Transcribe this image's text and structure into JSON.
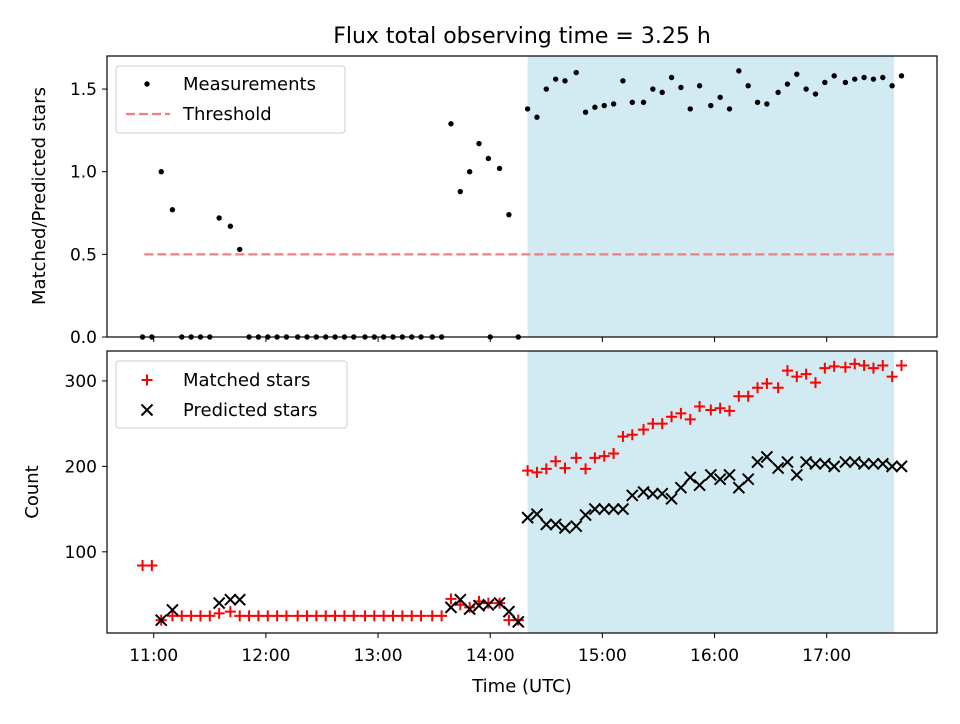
{
  "chart_data": [
    {
      "type": "scatter",
      "title": "Flux total observing time = 3.25 h",
      "xlabel": "",
      "ylabel": "Matched/Predicted stars",
      "ylim": [
        0,
        1.7
      ],
      "yticks": [
        "0.0",
        "0.5",
        "1.0",
        "1.5"
      ],
      "legend": {
        "placement": "top-left",
        "entries": [
          "Measurements",
          "Threshold"
        ]
      },
      "shaded_span": {
        "x0": "14:20",
        "x1": "17:36",
        "color": "#add8e6"
      },
      "threshold": {
        "y": 0.5,
        "x0": "10:55",
        "x1": "17:36",
        "color": "#f08080"
      },
      "series": [
        {
          "name": "Measurements",
          "color": "#000000",
          "marker": "dot",
          "points": [
            [
              "10:54",
              0.0
            ],
            [
              "10:59",
              0.0
            ],
            [
              "11:04",
              1.0
            ],
            [
              "11:10",
              0.77
            ],
            [
              "11:15",
              0.0
            ],
            [
              "11:20",
              0.0
            ],
            [
              "11:25",
              0.0
            ],
            [
              "11:30",
              0.0
            ],
            [
              "11:35",
              0.72
            ],
            [
              "11:41",
              0.67
            ],
            [
              "11:46",
              0.53
            ],
            [
              "11:51",
              0.0
            ],
            [
              "11:56",
              0.0
            ],
            [
              "12:01",
              0.0
            ],
            [
              "12:06",
              0.0
            ],
            [
              "12:11",
              0.0
            ],
            [
              "12:17",
              0.0
            ],
            [
              "12:22",
              0.0
            ],
            [
              "12:27",
              0.0
            ],
            [
              "12:32",
              0.0
            ],
            [
              "12:37",
              0.0
            ],
            [
              "12:42",
              0.0
            ],
            [
              "12:47",
              0.0
            ],
            [
              "12:53",
              0.0
            ],
            [
              "12:58",
              0.0
            ],
            [
              "13:03",
              0.0
            ],
            [
              "13:08",
              0.0
            ],
            [
              "13:13",
              0.0
            ],
            [
              "13:18",
              0.0
            ],
            [
              "13:23",
              0.0
            ],
            [
              "13:29",
              0.0
            ],
            [
              "13:34",
              0.0
            ],
            [
              "13:39",
              1.29
            ],
            [
              "13:44",
              0.88
            ],
            [
              "13:49",
              1.0
            ],
            [
              "13:54",
              1.17
            ],
            [
              "13:59",
              1.08
            ],
            [
              "14:00",
              0.0
            ],
            [
              "14:05",
              1.02
            ],
            [
              "14:10",
              0.74
            ],
            [
              "14:15",
              0.0
            ],
            [
              "14:20",
              1.38
            ],
            [
              "14:25",
              1.33
            ],
            [
              "14:30",
              1.5
            ],
            [
              "14:35",
              1.56
            ],
            [
              "14:40",
              1.55
            ],
            [
              "14:46",
              1.6
            ],
            [
              "14:51",
              1.36
            ],
            [
              "14:56",
              1.39
            ],
            [
              "15:01",
              1.4
            ],
            [
              "15:06",
              1.41
            ],
            [
              "15:11",
              1.55
            ],
            [
              "15:16",
              1.42
            ],
            [
              "15:22",
              1.42
            ],
            [
              "15:27",
              1.5
            ],
            [
              "15:32",
              1.48
            ],
            [
              "15:37",
              1.57
            ],
            [
              "15:42",
              1.51
            ],
            [
              "15:47",
              1.38
            ],
            [
              "15:52",
              1.52
            ],
            [
              "15:58",
              1.4
            ],
            [
              "16:03",
              1.45
            ],
            [
              "16:08",
              1.38
            ],
            [
              "16:13",
              1.61
            ],
            [
              "16:18",
              1.52
            ],
            [
              "16:23",
              1.42
            ],
            [
              "16:28",
              1.41
            ],
            [
              "16:34",
              1.48
            ],
            [
              "16:39",
              1.53
            ],
            [
              "16:44",
              1.59
            ],
            [
              "16:49",
              1.5
            ],
            [
              "16:54",
              1.47
            ],
            [
              "16:59",
              1.54
            ],
            [
              "17:04",
              1.58
            ],
            [
              "17:10",
              1.54
            ],
            [
              "17:15",
              1.56
            ],
            [
              "17:20",
              1.57
            ],
            [
              "17:25",
              1.56
            ],
            [
              "17:30",
              1.57
            ],
            [
              "17:35",
              1.52
            ],
            [
              "17:40",
              1.58
            ]
          ]
        }
      ]
    },
    {
      "type": "scatter",
      "title": "",
      "xlabel": "Time (UTC)",
      "ylabel": "Count",
      "ylim": [
        5,
        335
      ],
      "yticks": [
        "100",
        "200",
        "300"
      ],
      "xticks": [
        "11:00",
        "12:00",
        "13:00",
        "14:00",
        "15:00",
        "16:00",
        "17:00"
      ],
      "xlim": [
        "10:35",
        "17:59"
      ],
      "legend": {
        "placement": "top-left",
        "entries": [
          "Matched stars",
          "Predicted stars"
        ]
      },
      "shaded_span": {
        "x0": "14:20",
        "x1": "17:36",
        "color": "#add8e6"
      },
      "series": [
        {
          "name": "Matched stars",
          "color": "#ff0000",
          "marker": "plus",
          "points": [
            [
              "10:54",
              84
            ],
            [
              "10:59",
              84
            ],
            [
              "11:04",
              20
            ],
            [
              "11:10",
              25
            ],
            [
              "11:15",
              25
            ],
            [
              "11:20",
              25
            ],
            [
              "11:25",
              25
            ],
            [
              "11:30",
              25
            ],
            [
              "11:35",
              28
            ],
            [
              "11:41",
              30
            ],
            [
              "11:46",
              25
            ],
            [
              "11:51",
              25
            ],
            [
              "11:56",
              25
            ],
            [
              "12:01",
              25
            ],
            [
              "12:06",
              25
            ],
            [
              "12:11",
              25
            ],
            [
              "12:17",
              25
            ],
            [
              "12:22",
              25
            ],
            [
              "12:27",
              25
            ],
            [
              "12:32",
              25
            ],
            [
              "12:37",
              25
            ],
            [
              "12:42",
              25
            ],
            [
              "12:47",
              25
            ],
            [
              "12:53",
              25
            ],
            [
              "12:58",
              25
            ],
            [
              "13:03",
              25
            ],
            [
              "13:08",
              25
            ],
            [
              "13:13",
              25
            ],
            [
              "13:18",
              25
            ],
            [
              "13:23",
              25
            ],
            [
              "13:29",
              25
            ],
            [
              "13:34",
              25
            ],
            [
              "13:39",
              45
            ],
            [
              "13:44",
              38
            ],
            [
              "13:49",
              35
            ],
            [
              "13:54",
              42
            ],
            [
              "13:59",
              40
            ],
            [
              "14:05",
              40
            ],
            [
              "14:10",
              20
            ],
            [
              "14:15",
              20
            ],
            [
              "14:20",
              195
            ],
            [
              "14:25",
              193
            ],
            [
              "14:30",
              197
            ],
            [
              "14:35",
              206
            ],
            [
              "14:40",
              198
            ],
            [
              "14:46",
              210
            ],
            [
              "14:51",
              197
            ],
            [
              "14:56",
              210
            ],
            [
              "15:01",
              212
            ],
            [
              "15:06",
              215
            ],
            [
              "15:11",
              235
            ],
            [
              "15:16",
              237
            ],
            [
              "15:22",
              243
            ],
            [
              "15:27",
              250
            ],
            [
              "15:32",
              250
            ],
            [
              "15:37",
              258
            ],
            [
              "15:42",
              262
            ],
            [
              "15:47",
              255
            ],
            [
              "15:52",
              270
            ],
            [
              "15:58",
              266
            ],
            [
              "16:03",
              268
            ],
            [
              "16:08",
              265
            ],
            [
              "16:13",
              282
            ],
            [
              "16:18",
              282
            ],
            [
              "16:23",
              292
            ],
            [
              "16:28",
              297
            ],
            [
              "16:34",
              292
            ],
            [
              "16:39",
              312
            ],
            [
              "16:44",
              305
            ],
            [
              "16:49",
              308
            ],
            [
              "16:54",
              298
            ],
            [
              "16:59",
              315
            ],
            [
              "17:04",
              317
            ],
            [
              "17:10",
              316
            ],
            [
              "17:15",
              320
            ],
            [
              "17:20",
              318
            ],
            [
              "17:25",
              315
            ],
            [
              "17:30",
              318
            ],
            [
              "17:35",
              305
            ],
            [
              "17:40",
              318
            ]
          ]
        },
        {
          "name": "Predicted stars",
          "color": "#000000",
          "marker": "x",
          "points": [
            [
              "11:04",
              20
            ],
            [
              "11:10",
              32
            ],
            [
              "11:35",
              40
            ],
            [
              "11:41",
              44
            ],
            [
              "11:46",
              44
            ],
            [
              "13:39",
              35
            ],
            [
              "13:44",
              44
            ],
            [
              "13:49",
              33
            ],
            [
              "13:54",
              37
            ],
            [
              "13:59",
              38
            ],
            [
              "14:05",
              40
            ],
            [
              "14:10",
              30
            ],
            [
              "14:15",
              18
            ],
            [
              "14:20",
              140
            ],
            [
              "14:25",
              144
            ],
            [
              "14:30",
              132
            ],
            [
              "14:35",
              132
            ],
            [
              "14:40",
              128
            ],
            [
              "14:46",
              130
            ],
            [
              "14:51",
              143
            ],
            [
              "14:56",
              150
            ],
            [
              "15:01",
              150
            ],
            [
              "15:06",
              150
            ],
            [
              "15:11",
              150
            ],
            [
              "15:16",
              166
            ],
            [
              "15:22",
              170
            ],
            [
              "15:27",
              168
            ],
            [
              "15:32",
              168
            ],
            [
              "15:37",
              162
            ],
            [
              "15:42",
              175
            ],
            [
              "15:47",
              187
            ],
            [
              "15:52",
              178
            ],
            [
              "15:58",
              190
            ],
            [
              "16:03",
              185
            ],
            [
              "16:08",
              190
            ],
            [
              "16:13",
              175
            ],
            [
              "16:18",
              185
            ],
            [
              "16:23",
              205
            ],
            [
              "16:28",
              211
            ],
            [
              "16:34",
              198
            ],
            [
              "16:39",
              205
            ],
            [
              "16:44",
              190
            ],
            [
              "16:49",
              205
            ],
            [
              "16:54",
              203
            ],
            [
              "16:59",
              203
            ],
            [
              "17:04",
              200
            ],
            [
              "17:10",
              205
            ],
            [
              "17:15",
              205
            ],
            [
              "17:20",
              203
            ],
            [
              "17:25",
              203
            ],
            [
              "17:30",
              203
            ],
            [
              "17:35",
              200
            ],
            [
              "17:40",
              200
            ]
          ]
        }
      ]
    }
  ]
}
